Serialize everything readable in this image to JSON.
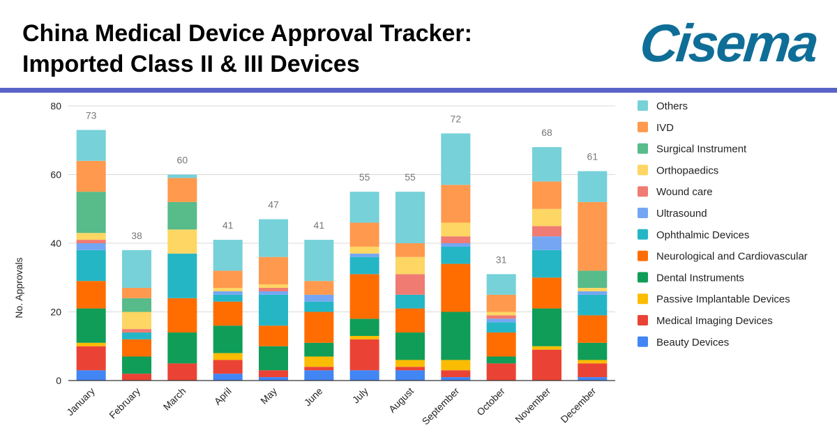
{
  "header": {
    "title_line1": "China Medical Device Approval Tracker:",
    "title_line2": "Imported Class II & III Devices",
    "logo_text": "Cisema",
    "logo_color": "#0f6e97",
    "rule_color": "#5a63c7"
  },
  "chart_data": {
    "type": "bar",
    "stacked": true,
    "title": "",
    "xlabel": "",
    "ylabel": "No. Approvals",
    "ylim": [
      0,
      80
    ],
    "yticks": [
      0,
      20,
      40,
      60,
      80
    ],
    "grid": true,
    "legend_position": "right",
    "categories": [
      "January",
      "February",
      "March",
      "April",
      "May",
      "June",
      "July",
      "August",
      "September",
      "October",
      "November",
      "December"
    ],
    "totals": [
      73,
      38,
      60,
      41,
      47,
      41,
      55,
      55,
      72,
      31,
      68,
      61
    ],
    "series": [
      {
        "name": "Beauty Devices",
        "color": "#4285f4",
        "values": [
          3,
          0,
          0,
          2,
          1,
          3,
          3,
          3,
          1,
          0,
          0,
          1
        ]
      },
      {
        "name": "Medical Imaging Devices",
        "color": "#ea4335",
        "values": [
          7,
          2,
          5,
          4,
          2,
          1,
          9,
          1,
          2,
          5,
          9,
          4
        ]
      },
      {
        "name": "Passive Implantable Devices",
        "color": "#fbbc04",
        "values": [
          1,
          0,
          0,
          2,
          0,
          3,
          1,
          2,
          3,
          0,
          1,
          1
        ]
      },
      {
        "name": "Dental Instruments",
        "color": "#0f9d58",
        "values": [
          10,
          5,
          9,
          8,
          7,
          4,
          5,
          8,
          14,
          2,
          11,
          5
        ]
      },
      {
        "name": "Neurological and Cardiovascular",
        "color": "#ff6d01",
        "values": [
          8,
          5,
          10,
          7,
          6,
          9,
          13,
          7,
          14,
          7,
          9,
          8
        ]
      },
      {
        "name": "Ophthalmic Devices",
        "color": "#25b6c6",
        "values": [
          9,
          2,
          13,
          2,
          9,
          3,
          5,
          4,
          5,
          3,
          8,
          6
        ]
      },
      {
        "name": "Ultrasound",
        "color": "#75a6f3",
        "values": [
          2,
          0,
          0,
          1,
          1,
          2,
          1,
          0,
          1,
          1,
          4,
          1
        ]
      },
      {
        "name": "Wound care",
        "color": "#f07b72",
        "values": [
          1,
          1,
          0,
          0,
          1,
          0,
          0,
          6,
          2,
          1,
          3,
          0
        ]
      },
      {
        "name": "Orthopaedics",
        "color": "#fdd663",
        "values": [
          2,
          5,
          7,
          1,
          1,
          0,
          2,
          5,
          4,
          1,
          5,
          1
        ]
      },
      {
        "name": "Surgical Instrument",
        "color": "#57bb8a",
        "values": [
          12,
          4,
          8,
          0,
          0,
          0,
          0,
          0,
          0,
          0,
          0,
          5
        ]
      },
      {
        "name": "IVD",
        "color": "#ff994d",
        "values": [
          9,
          3,
          7,
          5,
          8,
          4,
          7,
          4,
          11,
          5,
          8,
          20
        ]
      },
      {
        "name": "Others",
        "color": "#76d1d9",
        "values": [
          9,
          11,
          1,
          9,
          11,
          12,
          9,
          15,
          15,
          6,
          10,
          9
        ]
      }
    ]
  }
}
